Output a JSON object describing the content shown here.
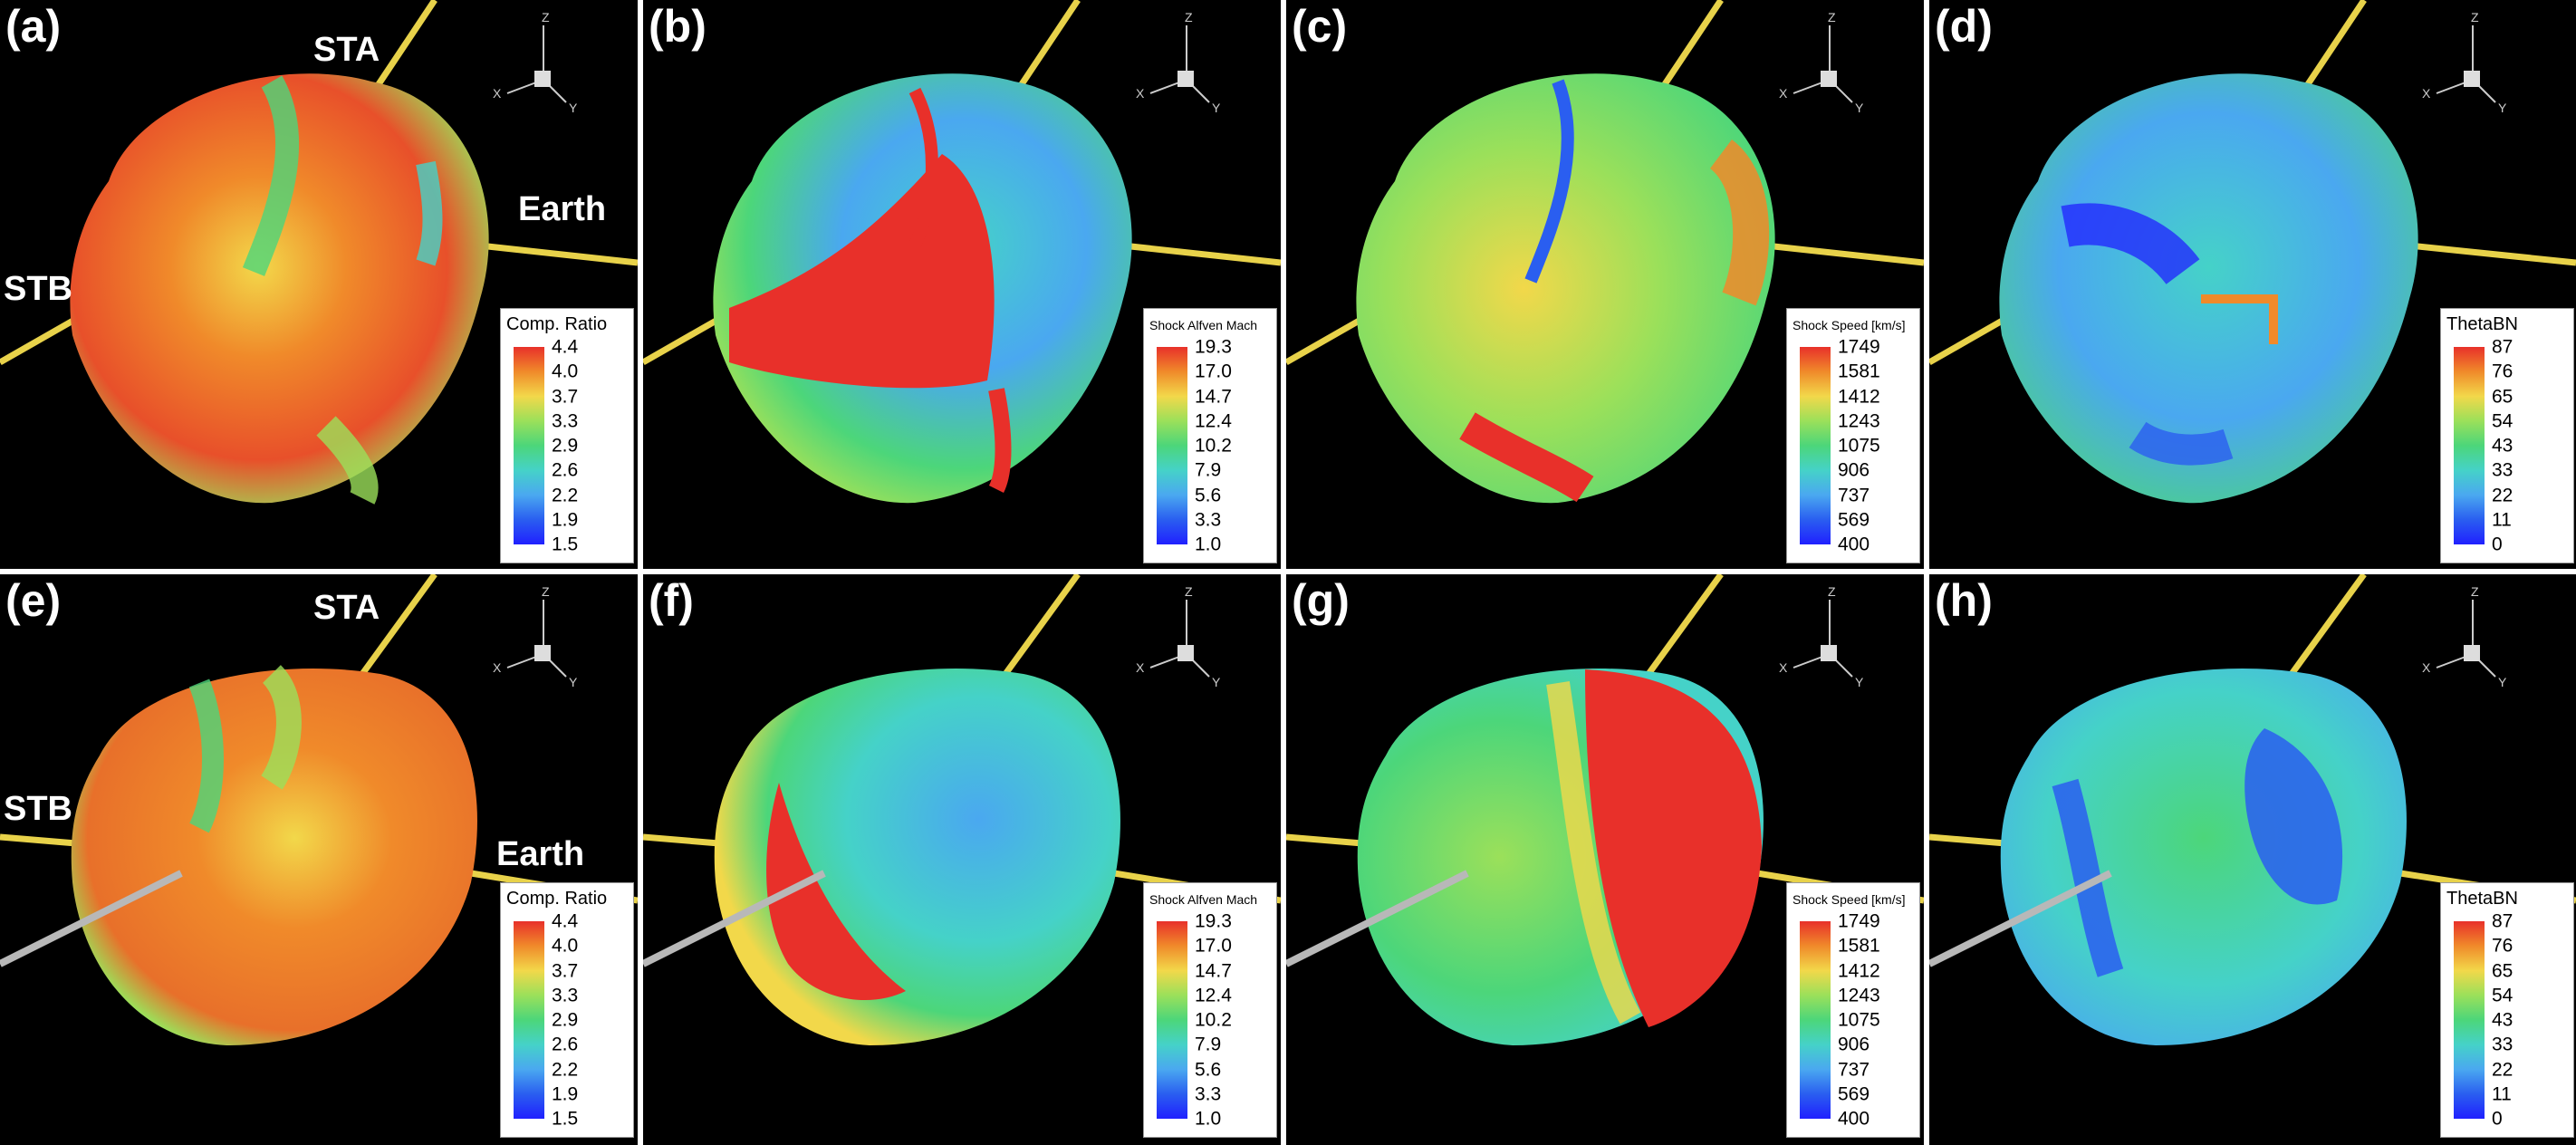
{
  "panels": [
    {
      "label": "(a)",
      "legend_title": "Comp. Ratio",
      "ticks": [
        "4.4",
        "4.0",
        "3.7",
        "3.3",
        "2.9",
        "2.6",
        "2.2",
        "1.9",
        "1.5"
      ],
      "sc_labels": {
        "sta": "STA",
        "stb": "STB",
        "earth": "Earth"
      }
    },
    {
      "label": "(b)",
      "legend_title": "Shock Alfven Mach",
      "ticks": [
        "19.3",
        "17.0",
        "14.7",
        "12.4",
        "10.2",
        "7.9",
        "5.6",
        "3.3",
        "1.0"
      ]
    },
    {
      "label": "(c)",
      "legend_title": "Shock Speed [km/s]",
      "ticks": [
        "1749",
        "1581",
        "1412",
        "1243",
        "1075",
        "906",
        "737",
        "569",
        "400"
      ]
    },
    {
      "label": "(d)",
      "legend_title": "ThetaBN",
      "ticks": [
        "87",
        "76",
        "65",
        "54",
        "43",
        "33",
        "22",
        "11",
        "0"
      ]
    },
    {
      "label": "(e)",
      "legend_title": "Comp. Ratio",
      "ticks": [
        "4.4",
        "4.0",
        "3.7",
        "3.3",
        "2.9",
        "2.6",
        "2.2",
        "1.9",
        "1.5"
      ],
      "sc_labels": {
        "sta": "STA",
        "stb": "STB",
        "earth": "Earth"
      }
    },
    {
      "label": "(f)",
      "legend_title": "Shock Alfven Mach",
      "ticks": [
        "19.3",
        "17.0",
        "14.7",
        "12.4",
        "10.2",
        "7.9",
        "5.6",
        "3.3",
        "1.0"
      ]
    },
    {
      "label": "(g)",
      "legend_title": "Shock Speed [km/s]",
      "ticks": [
        "1749",
        "1581",
        "1412",
        "1243",
        "1075",
        "906",
        "737",
        "569",
        "400"
      ]
    },
    {
      "label": "(h)",
      "legend_title": "ThetaBN",
      "ticks": [
        "87",
        "76",
        "65",
        "54",
        "43",
        "33",
        "22",
        "11",
        "0"
      ]
    }
  ],
  "axis_triad": {
    "z": "Z",
    "x": "X",
    "y": "Y"
  },
  "colors": {
    "background": "#000000",
    "spacecraft_line": "#e8d24a",
    "probe_line": "#b8b8b8",
    "colormap": [
      "#e8302a",
      "#f08a2a",
      "#f2d84a",
      "#9be05a",
      "#4cd67a",
      "#45d2c8",
      "#4aa8f0",
      "#2a5ef0",
      "#2020ff"
    ]
  }
}
